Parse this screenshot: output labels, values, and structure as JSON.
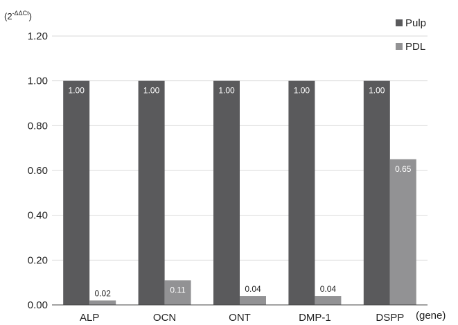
{
  "chart_data": {
    "type": "bar",
    "y_unit_base": "(2",
    "y_unit_sup": "-ΔΔCt",
    "y_unit_close": ")",
    "xlabel": "(gene)",
    "categories": [
      "ALP",
      "OCN",
      "ONT",
      "DMP-1",
      "DSPP"
    ],
    "ylim": [
      0,
      1.2
    ],
    "yticks": [
      "0.00",
      "0.20",
      "0.40",
      "0.60",
      "0.80",
      "1.00",
      "1.20"
    ],
    "grid": true,
    "legend_position": "top-right",
    "series": [
      {
        "name": "Pulp",
        "color": "#5a5a5c",
        "values": [
          1.0,
          1.0,
          1.0,
          1.0,
          1.0
        ],
        "labels": [
          "1.00",
          "1.00",
          "1.00",
          "1.00",
          "1.00"
        ]
      },
      {
        "name": "PDL",
        "color": "#929294",
        "values": [
          0.02,
          0.11,
          0.04,
          0.04,
          0.65
        ],
        "labels": [
          "0.02",
          "0.11",
          "0.04",
          "0.04",
          "0.65"
        ]
      }
    ]
  }
}
